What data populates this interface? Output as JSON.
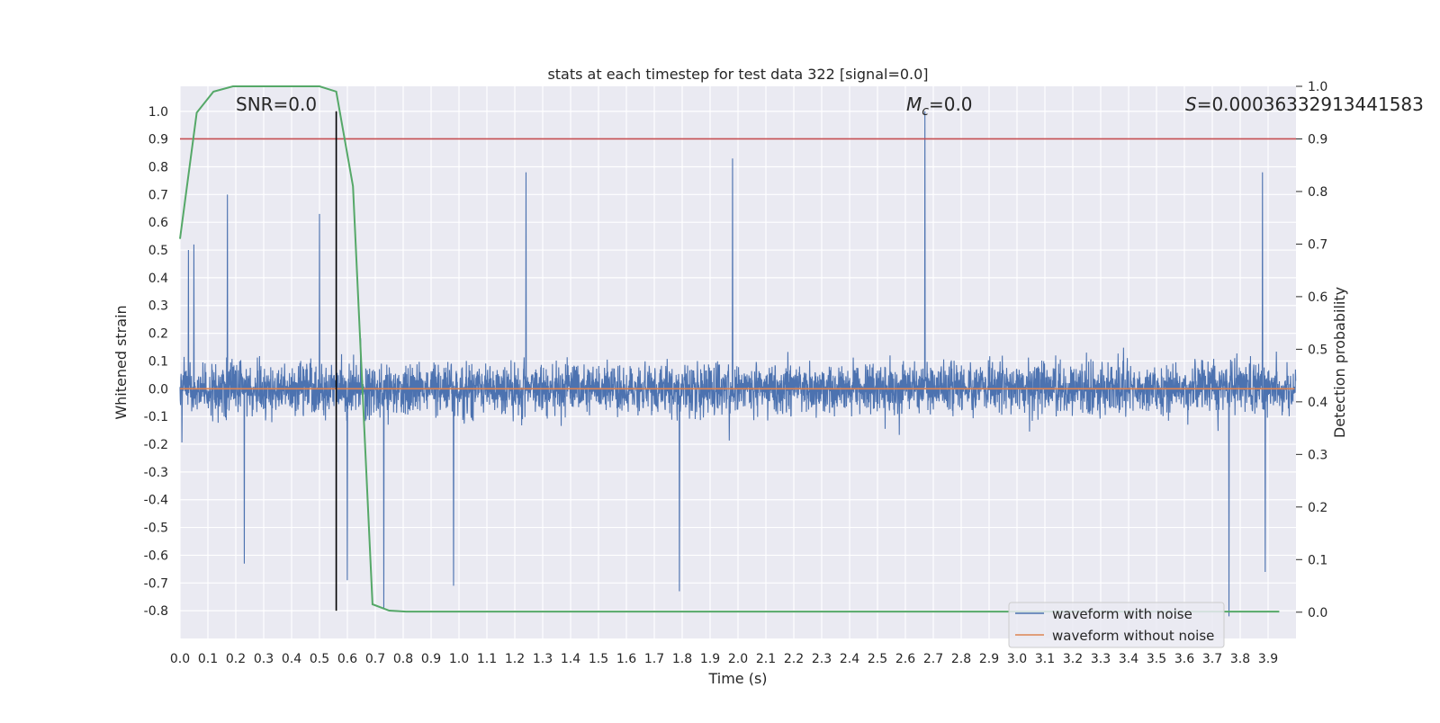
{
  "chart_data": {
    "type": "line",
    "title": "stats at each timestep for test data 322 [signal=0.0]",
    "xlabel": "Time (s)",
    "ylabel": "Whitened strain",
    "y2label": "Detection probability",
    "xlim": [
      0.0,
      4.0
    ],
    "ylim": [
      -0.9,
      1.09
    ],
    "y2lim": [
      -0.05,
      1.0
    ],
    "xticks": [
      "0.0",
      "0.1",
      "0.2",
      "0.3",
      "0.4",
      "0.5",
      "0.6",
      "0.7",
      "0.8",
      "0.9",
      "1.0",
      "1.1",
      "1.2",
      "1.3",
      "1.4",
      "1.5",
      "1.6",
      "1.7",
      "1.8",
      "1.9",
      "2.0",
      "2.1",
      "2.2",
      "2.3",
      "2.4",
      "2.5",
      "2.6",
      "2.7",
      "2.8",
      "2.9",
      "3.0",
      "3.1",
      "3.2",
      "3.3",
      "3.4",
      "3.5",
      "3.6",
      "3.7",
      "3.8",
      "3.9"
    ],
    "yticks": [
      "1.0",
      "0.9",
      "0.8",
      "0.7",
      "0.6",
      "0.5",
      "0.4",
      "0.3",
      "0.2",
      "0.1",
      "0.0",
      "-0.1",
      "-0.2",
      "-0.3",
      "-0.4",
      "-0.5",
      "-0.6",
      "-0.7",
      "-0.8"
    ],
    "y2ticks": [
      "1.0",
      "0.9",
      "0.8",
      "0.7",
      "0.6",
      "0.5",
      "0.4",
      "0.3",
      "0.2",
      "0.1",
      "0.0"
    ],
    "annotations": {
      "snr": "SNR=0.0",
      "mc_symbol": "M",
      "mc_sub": "c",
      "mc_value": "=0.0",
      "s_symbol": "S",
      "s_value": "=0.00036332913441583"
    },
    "threshold_line": {
      "y2": 0.9,
      "color": "#c44e52"
    },
    "marker_line": {
      "x": 0.56,
      "y_from": -0.8,
      "y_to": 1.0,
      "color": "#000000"
    },
    "grid": true,
    "legend_position": "bottom-right",
    "series": [
      {
        "name": "waveform with noise",
        "color": "#4c72b0",
        "kind": "noise",
        "points": 4096,
        "spikes": [
          {
            "x": 0.03,
            "y": 0.5
          },
          {
            "x": 0.05,
            "y": 0.52
          },
          {
            "x": 0.17,
            "y": 0.7
          },
          {
            "x": 0.23,
            "y": -0.63
          },
          {
            "x": 0.5,
            "y": 0.63
          },
          {
            "x": 0.6,
            "y": -0.69
          },
          {
            "x": 0.73,
            "y": -0.79
          },
          {
            "x": 0.98,
            "y": -0.71
          },
          {
            "x": 1.24,
            "y": 0.78
          },
          {
            "x": 1.79,
            "y": -0.73
          },
          {
            "x": 1.98,
            "y": 0.83
          },
          {
            "x": 2.67,
            "y": 1.0
          },
          {
            "x": 3.76,
            "y": -0.82
          },
          {
            "x": 3.88,
            "y": 0.78
          },
          {
            "x": 3.89,
            "y": -0.66
          }
        ]
      },
      {
        "name": "waveform without noise",
        "color": "#dd8452",
        "x": [
          0.0,
          3.995
        ],
        "y": [
          0.0,
          0.0
        ]
      },
      {
        "name": "detection probability",
        "color": "#55a868",
        "axis": "right",
        "x": [
          0.0,
          0.06,
          0.12,
          0.19,
          0.25,
          0.31,
          0.37,
          0.44,
          0.5,
          0.56,
          0.62,
          0.69,
          0.75,
          0.81,
          0.87,
          1.0,
          2.0,
          3.0,
          3.94
        ],
        "y": [
          0.71,
          0.95,
          0.99,
          1.0,
          1.0,
          1.0,
          1.0,
          1.0,
          1.0,
          0.99,
          0.81,
          0.015,
          0.003,
          0.001,
          0.001,
          0.001,
          0.001,
          0.001,
          0.001
        ]
      }
    ]
  }
}
